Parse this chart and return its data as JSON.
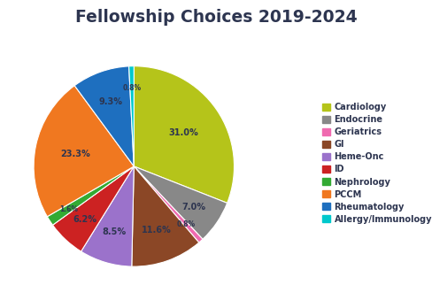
{
  "title": "Fellowship Choices 2019-2024",
  "title_color": "#2d3550",
  "labels": [
    "Cardiology",
    "Endocrine",
    "Geriatrics",
    "GI",
    "Heme-Onc",
    "ID",
    "Nephrology",
    "PCCM",
    "Rheumatology",
    "Allergy/Immunology"
  ],
  "values": [
    31.0,
    7.0,
    0.8,
    11.6,
    8.5,
    6.2,
    1.6,
    23.3,
    9.3,
    0.8
  ],
  "colors": [
    "#b5c41a",
    "#888888",
    "#f06ab0",
    "#8b4726",
    "#9b72cb",
    "#cc2222",
    "#33aa33",
    "#f07820",
    "#1e6fbf",
    "#00c8cc"
  ],
  "pct_labels": [
    "31.0%",
    "7.0%",
    "0.8%",
    "11.6%",
    "8.5%",
    "6.2%",
    "1.6%",
    "23.3%",
    "9.3%",
    "0.8%"
  ],
  "label_color": "#2d3550",
  "startangle": 90,
  "background_color": "#ffffff"
}
